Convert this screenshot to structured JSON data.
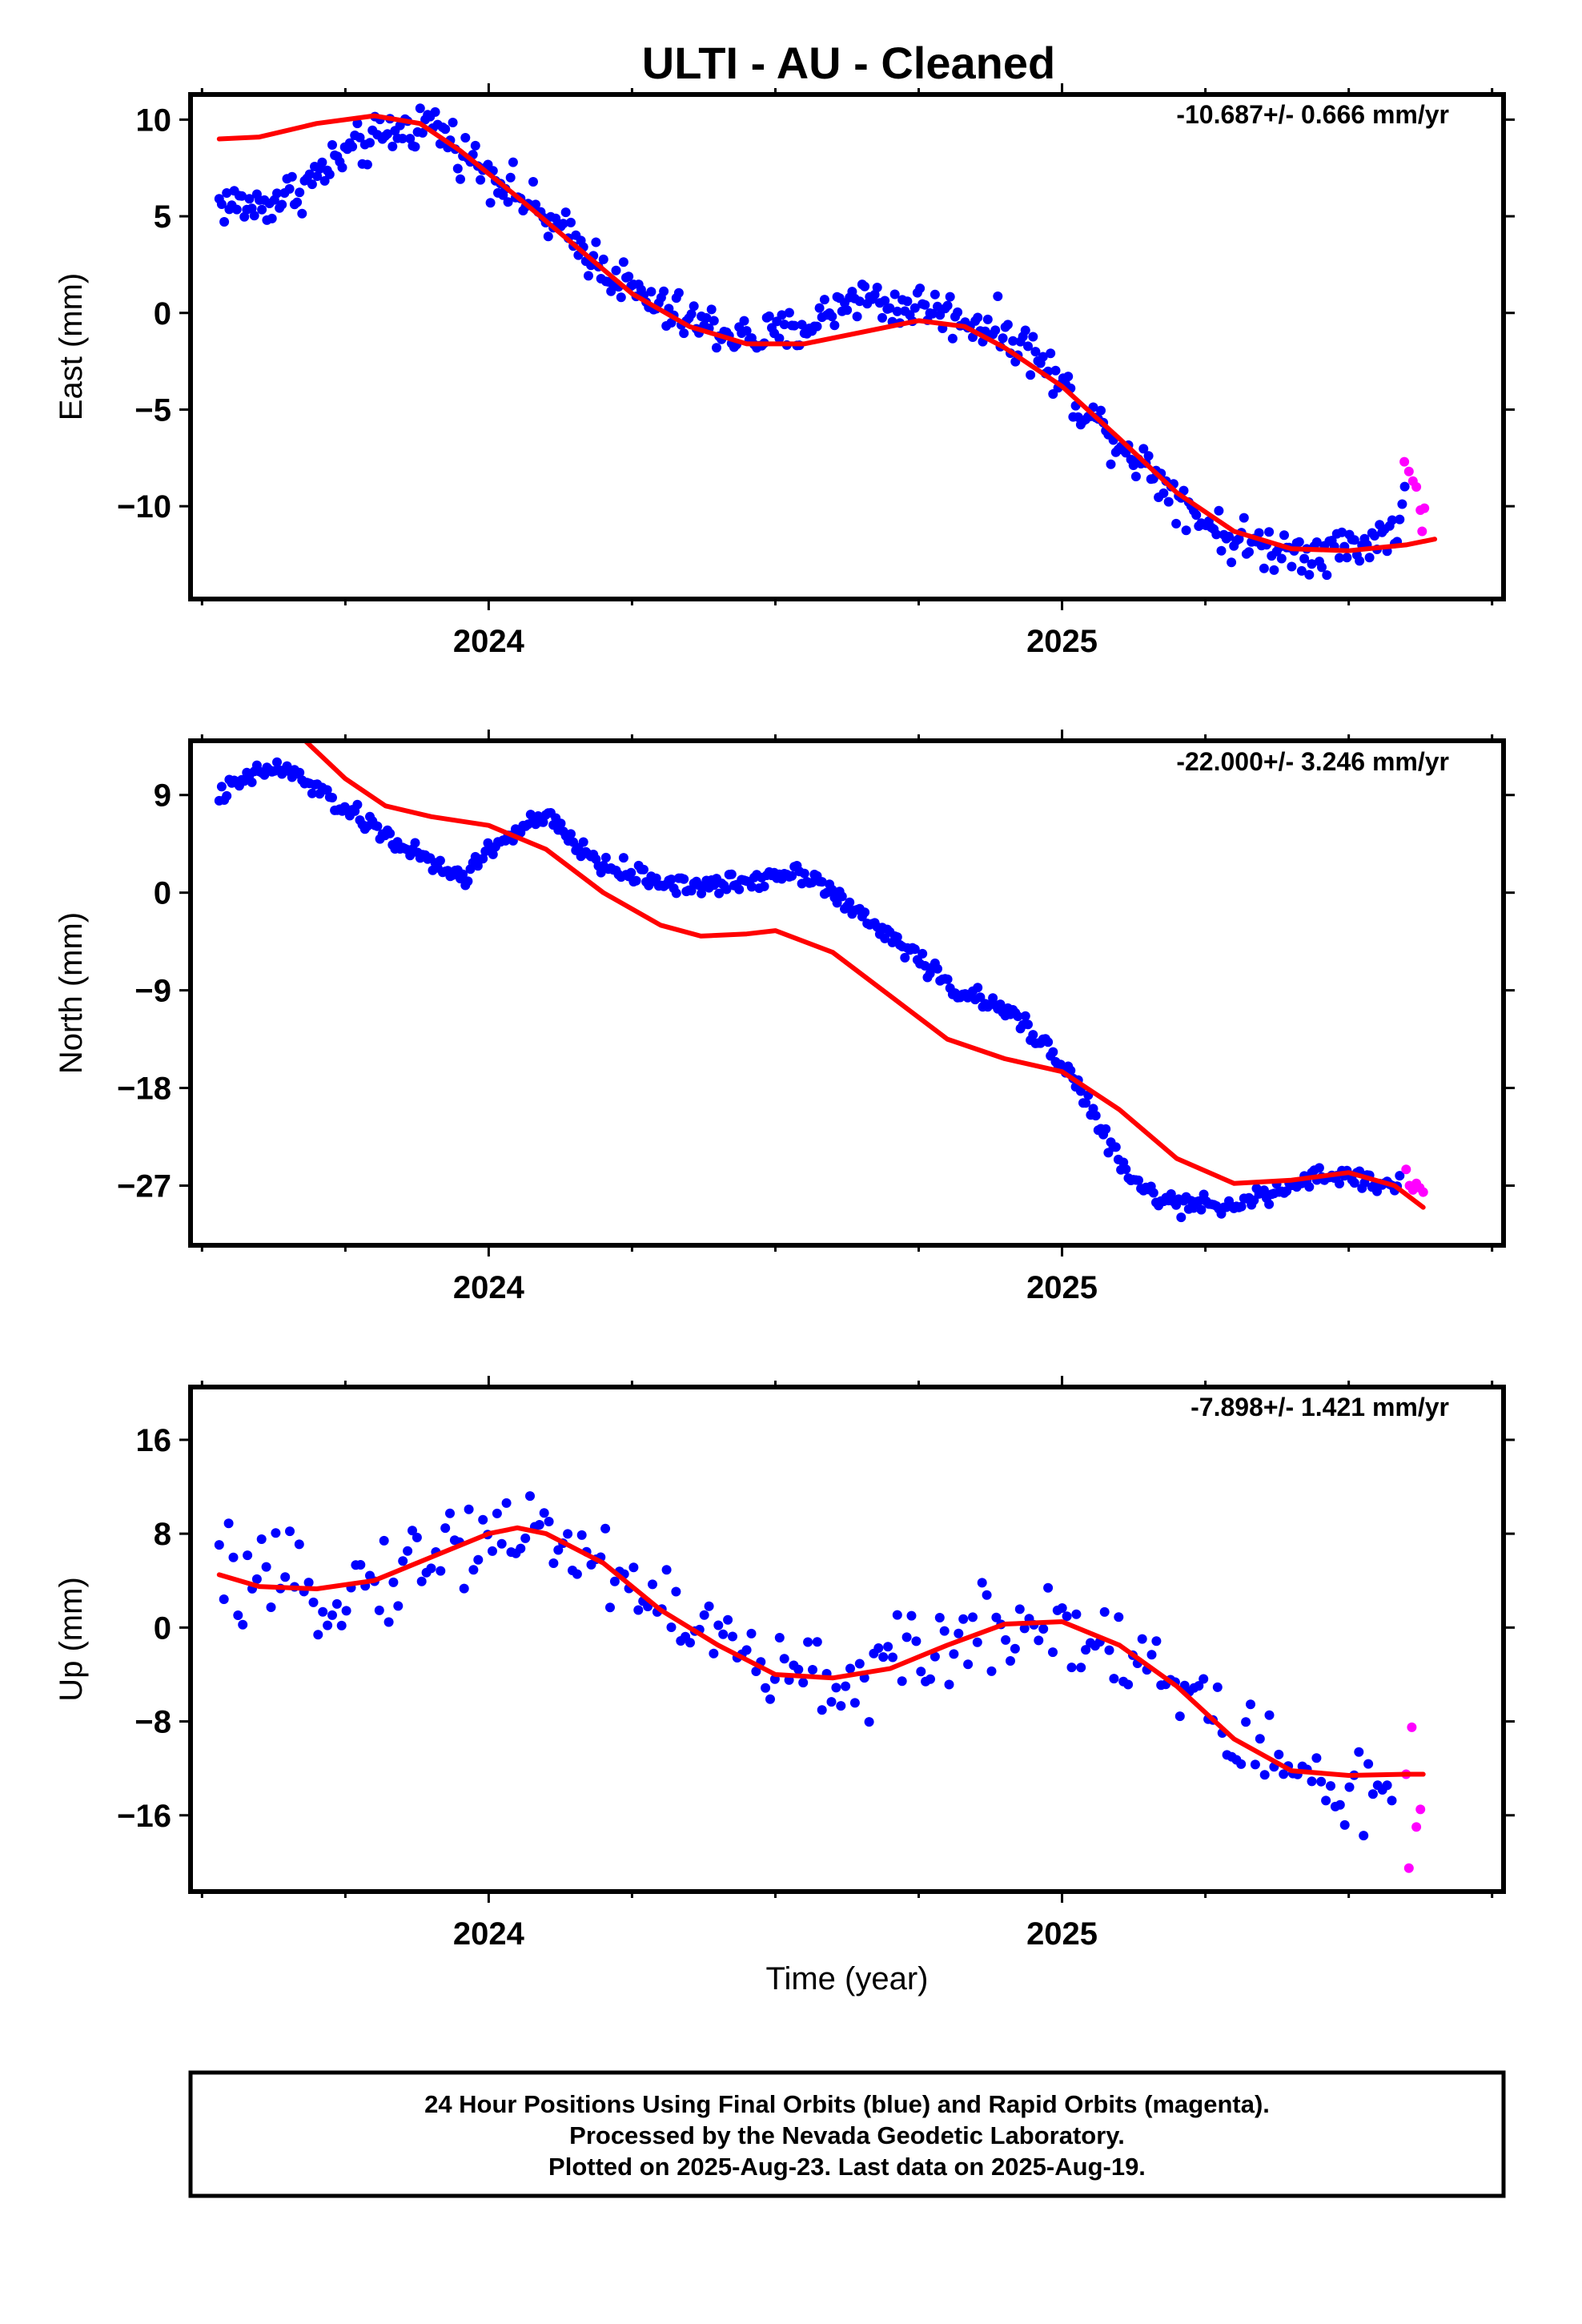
{
  "title": "ULTI  - AU - Cleaned",
  "footer": {
    "line1": "24 Hour Positions Using Final Orbits (blue) and Rapid Orbits (magenta).",
    "line2": "Processed by the Nevada Geodetic Laboratory.",
    "line3": "Plotted on 2025-Aug-23. Last data on 2025-Aug-19."
  },
  "colors": {
    "final": "#0000ff",
    "rapid": "#ff00ff",
    "model": "#ff0000"
  },
  "chart_data": [
    {
      "type": "scatter",
      "component": "east",
      "ylabel": "East (mm)",
      "xlabel": "",
      "rate_label": "-10.687+/- 0.666 mm/yr",
      "xlim": [
        2023.48,
        2025.77
      ],
      "ylim": [
        -14.8,
        11.3
      ],
      "yticks": [
        10,
        5,
        0,
        -5,
        -10
      ],
      "ytick_labels": [
        "10",
        "5",
        "0",
        "−5",
        "−10"
      ],
      "xticks": [
        2024,
        2025
      ],
      "xtick_labels": [
        "2024",
        "2025"
      ],
      "grid": false,
      "final_trend": [
        [
          2023.53,
          5.7
        ],
        [
          2023.6,
          5.5
        ],
        [
          2023.67,
          6.4
        ],
        [
          2023.75,
          8.2
        ],
        [
          2023.83,
          9.3
        ],
        [
          2023.9,
          9.9
        ],
        [
          2023.96,
          8.2
        ],
        [
          2024.03,
          6.7
        ],
        [
          2024.1,
          4.8
        ],
        [
          2024.17,
          3.2
        ],
        [
          2024.24,
          1.4
        ],
        [
          2024.3,
          0.2
        ],
        [
          2024.37,
          -0.6
        ],
        [
          2024.45,
          -1.3
        ],
        [
          2024.52,
          -1.1
        ],
        [
          2024.58,
          -0.3
        ],
        [
          2024.64,
          1.0
        ],
        [
          2024.7,
          0.3
        ],
        [
          2024.76,
          0.4
        ],
        [
          2024.82,
          -0.3
        ],
        [
          2024.88,
          -0.7
        ],
        [
          2024.95,
          -2.0
        ],
        [
          2025.0,
          -3.8
        ],
        [
          2025.06,
          -5.6
        ],
        [
          2025.12,
          -7.2
        ],
        [
          2025.18,
          -8.8
        ],
        [
          2025.25,
          -10.8
        ],
        [
          2025.3,
          -11.8
        ],
        [
          2025.36,
          -12.1
        ],
        [
          2025.42,
          -12.3
        ],
        [
          2025.48,
          -12.2
        ],
        [
          2025.54,
          -11.8
        ],
        [
          2025.585,
          -11.0
        ],
        [
          2025.6,
          -9.0
        ]
      ],
      "final_noise": 0.9,
      "final_step_days": 1.6,
      "rapid_points": [
        [
          2025.597,
          -7.7
        ],
        [
          2025.605,
          -8.2
        ],
        [
          2025.612,
          -8.7
        ],
        [
          2025.618,
          -9.0
        ],
        [
          2025.625,
          -10.2
        ],
        [
          2025.632,
          -10.1
        ],
        [
          2025.628,
          -11.3
        ]
      ],
      "model_curve": [
        [
          2023.53,
          9.0
        ],
        [
          2023.6,
          9.1
        ],
        [
          2023.7,
          9.8
        ],
        [
          2023.8,
          10.2
        ],
        [
          2023.88,
          9.8
        ],
        [
          2023.95,
          8.4
        ],
        [
          2024.05,
          6.0
        ],
        [
          2024.15,
          3.5
        ],
        [
          2024.25,
          1.0
        ],
        [
          2024.35,
          -0.7
        ],
        [
          2024.45,
          -1.6
        ],
        [
          2024.55,
          -1.6
        ],
        [
          2024.65,
          -1.0
        ],
        [
          2024.75,
          -0.4
        ],
        [
          2024.83,
          -0.7
        ],
        [
          2024.9,
          -1.8
        ],
        [
          2025.0,
          -3.8
        ],
        [
          2025.1,
          -6.5
        ],
        [
          2025.2,
          -9.3
        ],
        [
          2025.3,
          -11.3
        ],
        [
          2025.4,
          -12.2
        ],
        [
          2025.5,
          -12.3
        ],
        [
          2025.6,
          -12.0
        ],
        [
          2025.65,
          -11.7
        ]
      ]
    },
    {
      "type": "scatter",
      "component": "north",
      "ylabel": "North (mm)",
      "xlabel": "",
      "rate_label": "-22.000+/- 3.246 mm/yr",
      "xlim": [
        2023.48,
        2025.77
      ],
      "ylim": [
        -32.5,
        14.0
      ],
      "yticks": [
        9,
        0,
        -9,
        -18,
        -27
      ],
      "ytick_labels": [
        "9",
        "0",
        "−9",
        "−18",
        "−27"
      ],
      "xticks": [
        2024,
        2025
      ],
      "xtick_labels": [
        "2024",
        "2025"
      ],
      "grid": false,
      "final_trend": [
        [
          2023.53,
          9.0
        ],
        [
          2023.58,
          10.5
        ],
        [
          2023.62,
          11.5
        ],
        [
          2023.66,
          11.0
        ],
        [
          2023.7,
          9.5
        ],
        [
          2023.74,
          8.0
        ],
        [
          2023.8,
          6.0
        ],
        [
          2023.86,
          4.0
        ],
        [
          2023.92,
          2.0
        ],
        [
          2023.96,
          1.5
        ],
        [
          2024.0,
          4.0
        ],
        [
          2024.06,
          6.0
        ],
        [
          2024.1,
          7.0
        ],
        [
          2024.15,
          4.5
        ],
        [
          2024.2,
          2.5
        ],
        [
          2024.3,
          1.0
        ],
        [
          2024.38,
          0.5
        ],
        [
          2024.45,
          1.0
        ],
        [
          2024.52,
          2.0
        ],
        [
          2024.57,
          1.5
        ],
        [
          2024.63,
          -1.5
        ],
        [
          2024.7,
          -4.0
        ],
        [
          2024.75,
          -6.0
        ],
        [
          2024.8,
          -8.5
        ],
        [
          2024.86,
          -10.0
        ],
        [
          2024.92,
          -11.5
        ],
        [
          2024.96,
          -13.5
        ],
        [
          2025.0,
          -15.5
        ],
        [
          2025.04,
          -19.0
        ],
        [
          2025.08,
          -23.0
        ],
        [
          2025.12,
          -26.5
        ],
        [
          2025.18,
          -28.5
        ],
        [
          2025.24,
          -29.0
        ],
        [
          2025.3,
          -28.5
        ],
        [
          2025.36,
          -28.0
        ],
        [
          2025.43,
          -26.5
        ],
        [
          2025.5,
          -26.0
        ],
        [
          2025.55,
          -26.8
        ],
        [
          2025.59,
          -27.0
        ]
      ],
      "final_noise": 0.7,
      "final_step_days": 1.6,
      "rapid_points": [
        [
          2025.6,
          -25.5
        ],
        [
          2025.606,
          -27.0
        ],
        [
          2025.612,
          -27.4
        ],
        [
          2025.618,
          -26.8
        ],
        [
          2025.624,
          -27.2
        ],
        [
          2025.63,
          -27.6
        ]
      ],
      "model_curve": [
        [
          2023.68,
          14.0
        ],
        [
          2023.75,
          10.5
        ],
        [
          2023.82,
          8.0
        ],
        [
          2023.9,
          7.0
        ],
        [
          2024.0,
          6.2
        ],
        [
          2024.1,
          4.0
        ],
        [
          2024.2,
          0.0
        ],
        [
          2024.3,
          -3.0
        ],
        [
          2024.37,
          -4.0
        ],
        [
          2024.45,
          -3.8
        ],
        [
          2024.5,
          -3.5
        ],
        [
          2024.6,
          -5.5
        ],
        [
          2024.7,
          -9.5
        ],
        [
          2024.8,
          -13.5
        ],
        [
          2024.9,
          -15.3
        ],
        [
          2025.0,
          -16.5
        ],
        [
          2025.1,
          -20.0
        ],
        [
          2025.2,
          -24.5
        ],
        [
          2025.3,
          -26.8
        ],
        [
          2025.4,
          -26.5
        ],
        [
          2025.5,
          -25.8
        ],
        [
          2025.58,
          -27.0
        ],
        [
          2025.63,
          -29.0
        ]
      ]
    },
    {
      "type": "scatter",
      "component": "up",
      "ylabel": "Up (mm)",
      "xlabel": "Time (year)",
      "rate_label": "-7.898+/- 1.421 mm/yr",
      "xlim": [
        2023.48,
        2025.77
      ],
      "ylim": [
        -22.5,
        20.5
      ],
      "yticks": [
        16,
        8,
        0,
        -8,
        -16
      ],
      "ytick_labels": [
        "16",
        "8",
        "0",
        "−8",
        "−16"
      ],
      "xticks": [
        2024,
        2025
      ],
      "xtick_labels": [
        "2024",
        "2025"
      ],
      "grid": false,
      "final_trend": [
        [
          2023.53,
          4.5
        ],
        [
          2023.6,
          3.5
        ],
        [
          2023.7,
          3.0
        ],
        [
          2023.8,
          4.0
        ],
        [
          2023.9,
          6.0
        ],
        [
          2024.0,
          8.5
        ],
        [
          2024.1,
          8.0
        ],
        [
          2024.2,
          5.5
        ],
        [
          2024.3,
          2.0
        ],
        [
          2024.4,
          -1.0
        ],
        [
          2024.5,
          -4.0
        ],
        [
          2024.6,
          -4.5
        ],
        [
          2024.7,
          -3.5
        ],
        [
          2024.8,
          -1.5
        ],
        [
          2024.9,
          0.5
        ],
        [
          2025.0,
          0.5
        ],
        [
          2025.1,
          -1.5
        ],
        [
          2025.2,
          -5.0
        ],
        [
          2025.3,
          -9.0
        ],
        [
          2025.4,
          -12.0
        ],
        [
          2025.5,
          -14.0
        ],
        [
          2025.58,
          -15.0
        ]
      ],
      "final_noise": 2.9,
      "final_step_days": 3.0,
      "rapid_points": [
        [
          2025.61,
          -8.5
        ],
        [
          2025.6,
          -12.5
        ],
        [
          2025.625,
          -15.5
        ],
        [
          2025.618,
          -17.0
        ],
        [
          2025.605,
          -20.5
        ]
      ],
      "model_curve": [
        [
          2023.53,
          4.5
        ],
        [
          2023.6,
          3.5
        ],
        [
          2023.7,
          3.3
        ],
        [
          2023.8,
          4.0
        ],
        [
          2023.9,
          6.0
        ],
        [
          2024.0,
          8.0
        ],
        [
          2024.05,
          8.5
        ],
        [
          2024.1,
          8.0
        ],
        [
          2024.2,
          5.5
        ],
        [
          2024.3,
          1.5
        ],
        [
          2024.4,
          -1.5
        ],
        [
          2024.5,
          -4.0
        ],
        [
          2024.6,
          -4.3
        ],
        [
          2024.7,
          -3.5
        ],
        [
          2024.8,
          -1.5
        ],
        [
          2024.9,
          0.3
        ],
        [
          2025.0,
          0.5
        ],
        [
          2025.1,
          -1.5
        ],
        [
          2025.2,
          -5.0
        ],
        [
          2025.3,
          -9.5
        ],
        [
          2025.4,
          -12.2
        ],
        [
          2025.5,
          -12.6
        ],
        [
          2025.6,
          -12.5
        ],
        [
          2025.63,
          -12.5
        ]
      ]
    }
  ]
}
